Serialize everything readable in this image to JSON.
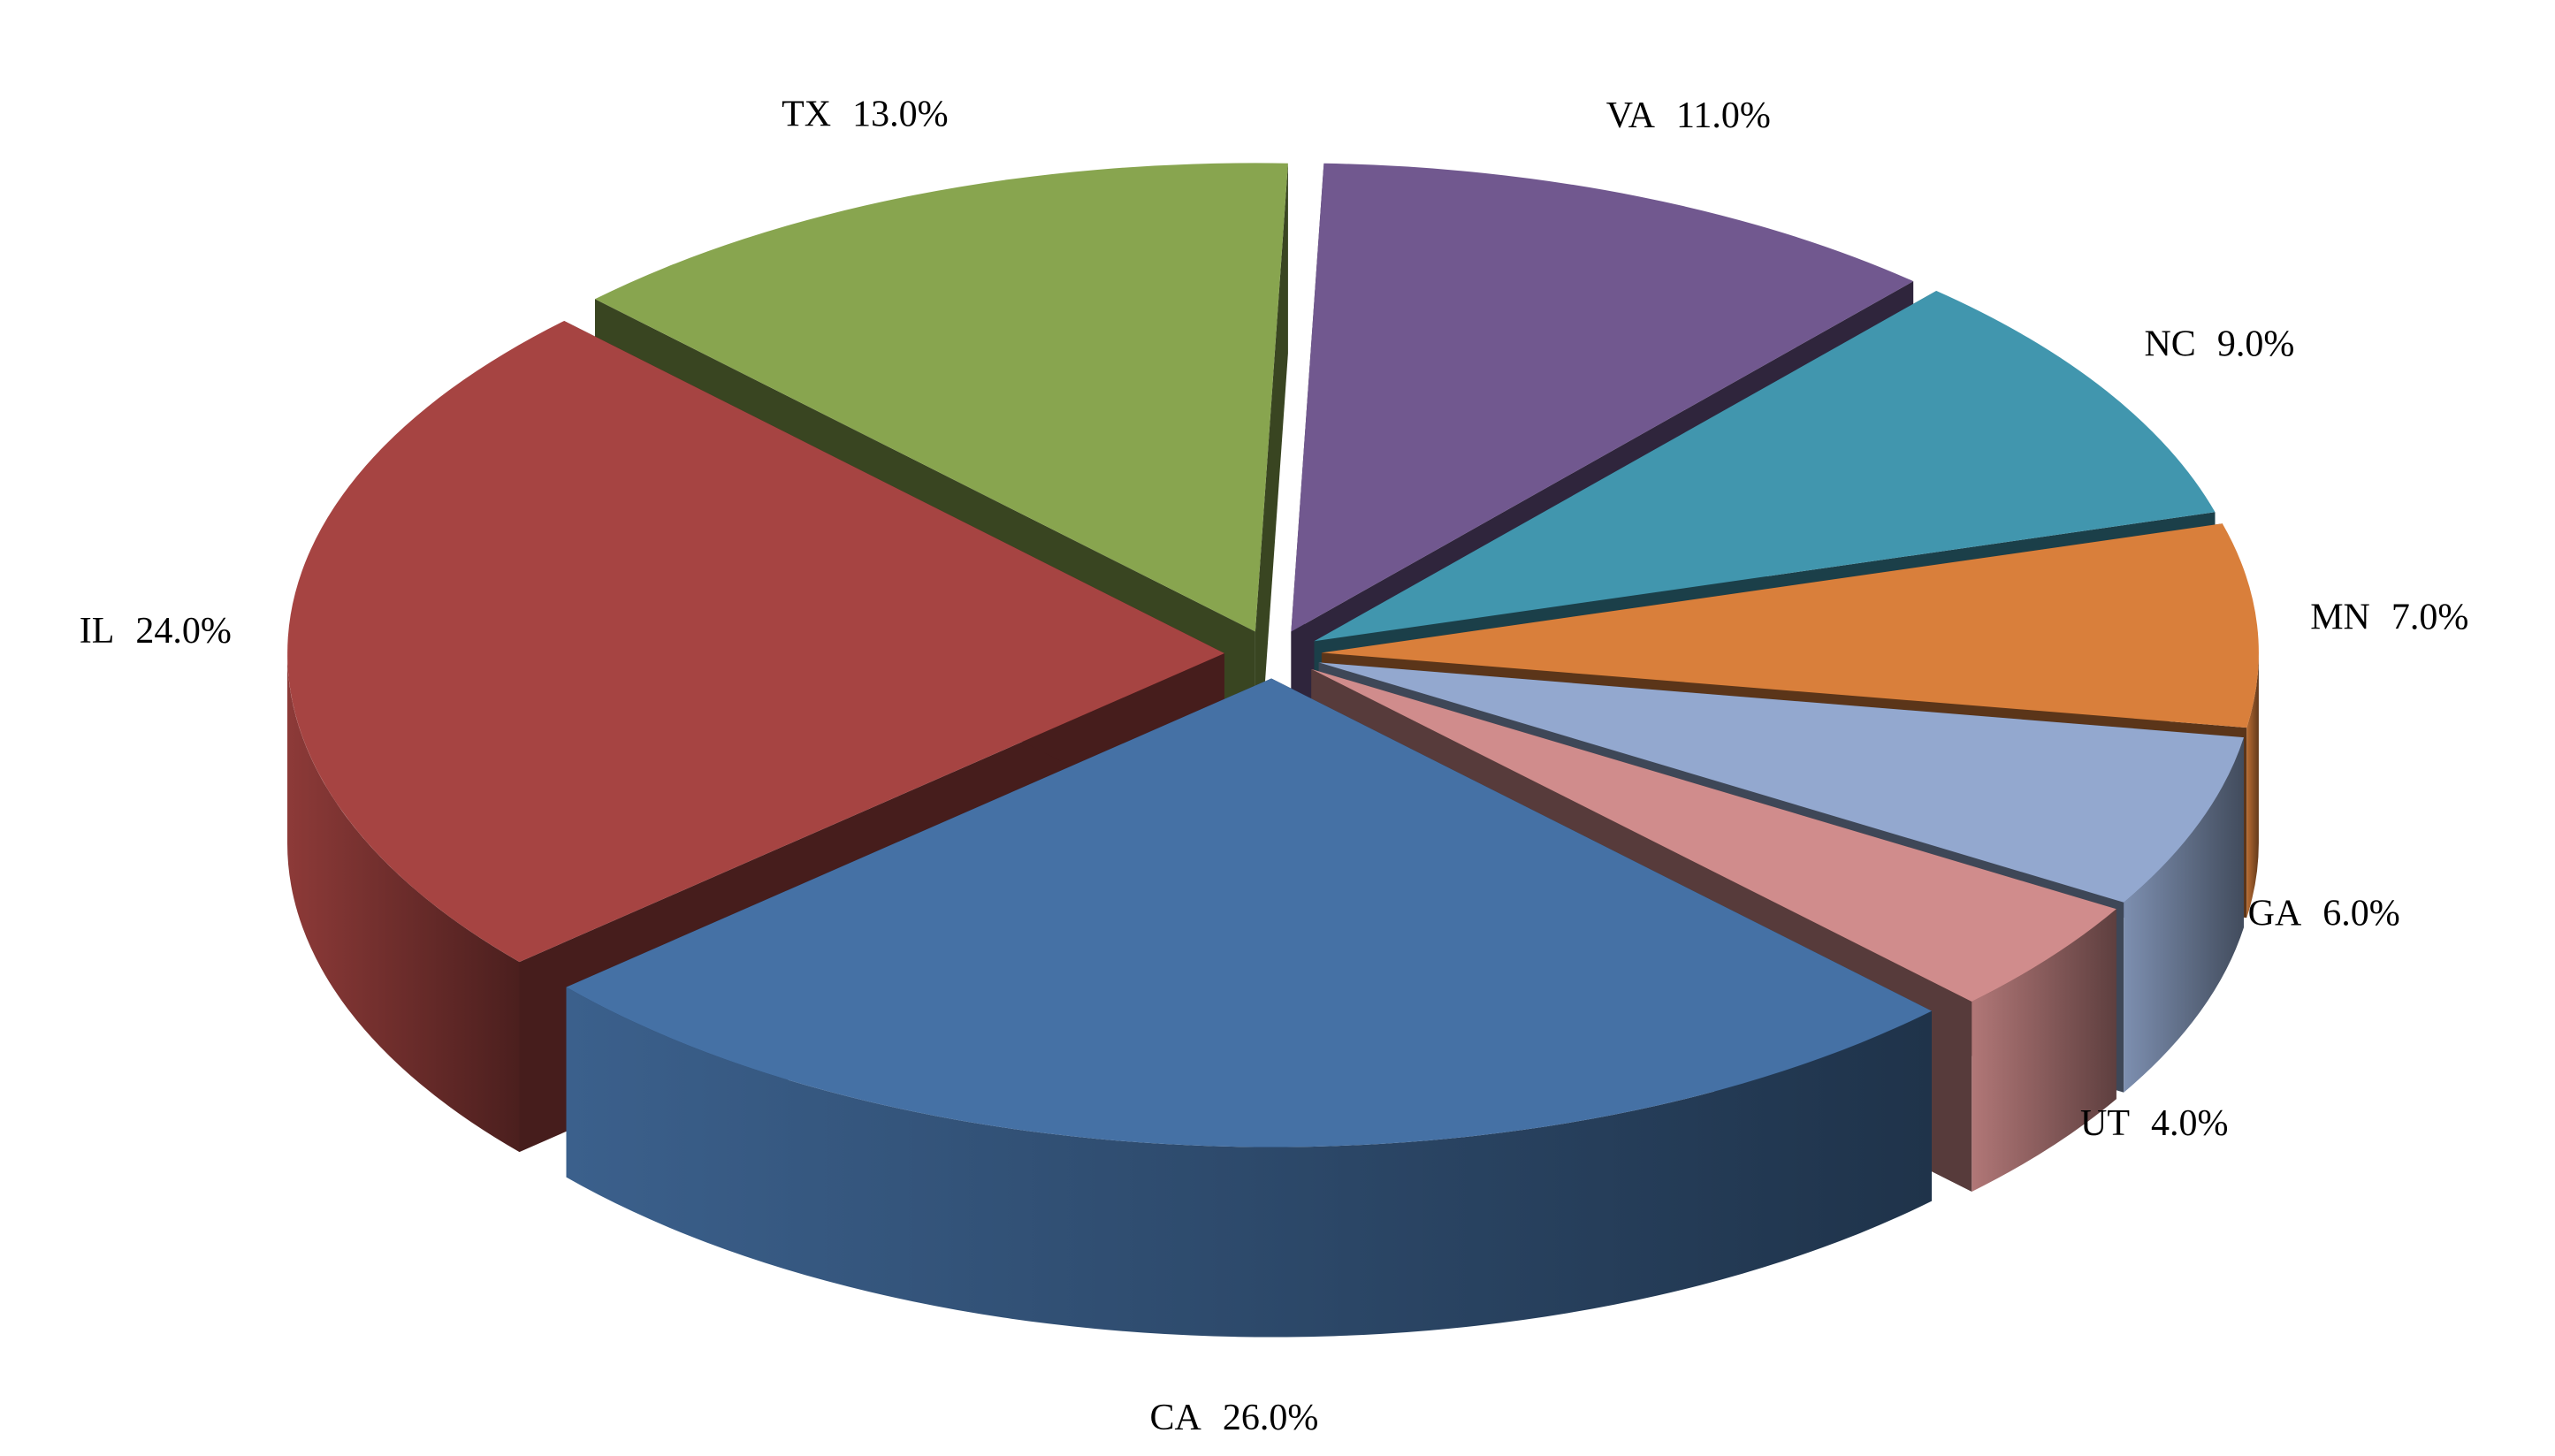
{
  "chart_data": {
    "type": "pie3d",
    "categories": [
      "VA",
      "NC",
      "MN",
      "GA",
      "UT",
      "CA",
      "IL",
      "TX"
    ],
    "values": [
      11,
      9,
      7,
      6,
      4,
      26,
      24,
      13
    ],
    "value_labels": [
      "11.0%",
      "9.0%",
      "7.0%",
      "6.0%",
      "4.0%",
      "26.0%",
      "24.0%",
      "13.0%"
    ],
    "colors": [
      "#71588f",
      "#4196ae",
      "#d97f3b",
      "#93a8cf",
      "#d08c8c",
      "#4571a5",
      "#a64442",
      "#88a54f"
    ]
  }
}
